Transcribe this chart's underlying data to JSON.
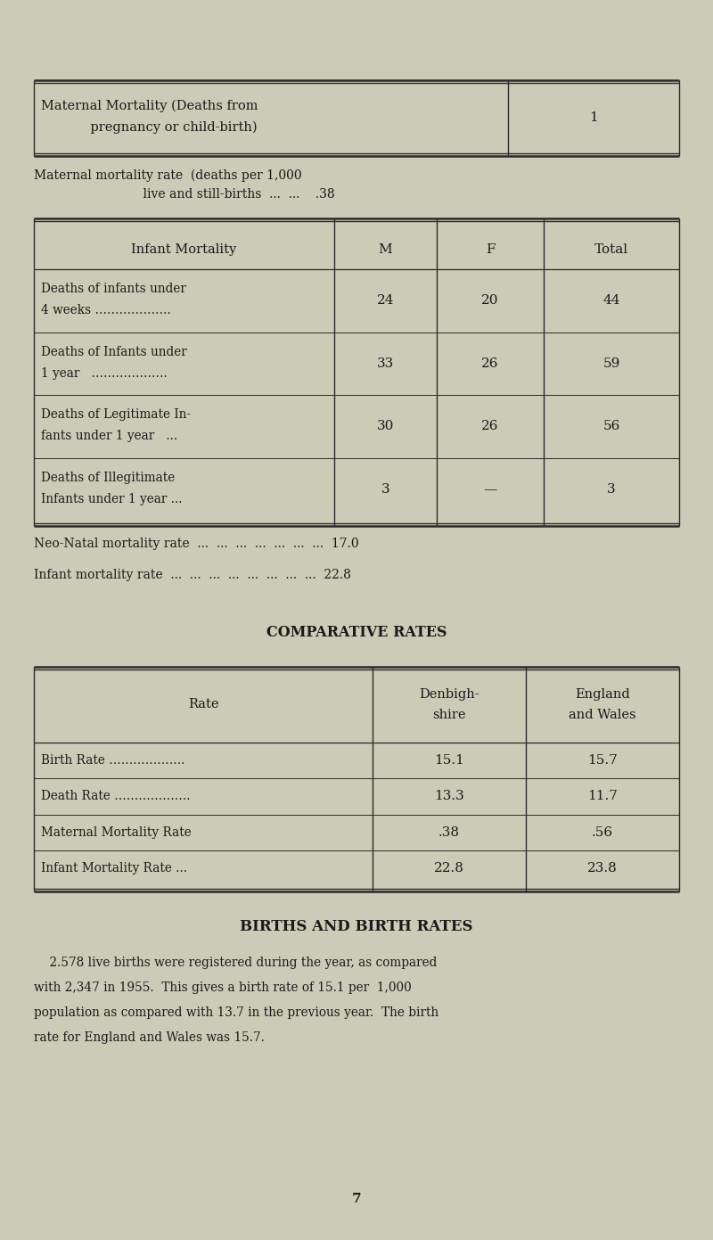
{
  "bg_color": "#cccbb8",
  "text_color": "#1a1a1a",
  "page_width": 8.0,
  "page_height": 13.91,
  "top_table_row1": "Maternal Mortality (Deaths from",
  "top_table_row2": "            pregnancy or child-birth)",
  "top_table_val": "1",
  "mmr_line1": "Maternal mortality rate  (deaths per 1,000",
  "mmr_line2": "                            live and still-births  ...  ...    .38",
  "infant_headers": [
    "Infant Mortality",
    "M",
    "F",
    "Total"
  ],
  "infant_rows": [
    [
      "Deaths of infants under",
      "4 weeks ……………….",
      "24",
      "20",
      "44"
    ],
    [
      "Deaths of Infants under",
      "1 year   ……………….",
      "33",
      "26",
      "59"
    ],
    [
      "Deaths of Legitimate In-",
      "fants under 1 year   ...",
      "30",
      "26",
      "56"
    ],
    [
      "Deaths of Illegitimate",
      "Infants under 1 year ...",
      "3",
      "—",
      "3"
    ]
  ],
  "neo_natal_line": "Neo-Natal mortality rate  ...  ...  ...  ...  ...  ...  ...  17.0",
  "infant_rate_line": "Infant mortality rate  ...  ...  ...  ...  ...  ...  ...  ...  22.8",
  "comp_title": "COMPARATIVE RATES",
  "comp_headers": [
    "Rate",
    "Denbigh-\nshire",
    "England\nand Wales"
  ],
  "comp_rows": [
    [
      "Birth Rate ……………….",
      "15.1",
      "15.7"
    ],
    [
      "Death Rate ……………….",
      "13.3",
      "11.7"
    ],
    [
      "Maternal Mortality Rate",
      ".38",
      ".56"
    ],
    [
      "Infant Mortality Rate ...",
      "22.8",
      "23.8"
    ]
  ],
  "births_title": "BIRTHS AND BIRTH RATES",
  "births_para_lines": [
    "    2.578 live births were registered during the year, as compared",
    "with 2,347 in 1955.  This gives a birth rate of 15.1 per  1,000",
    "population as compared with 13.7 in the previous year.  The birth",
    "rate for England and Wales was 15.7."
  ],
  "page_number": "7"
}
